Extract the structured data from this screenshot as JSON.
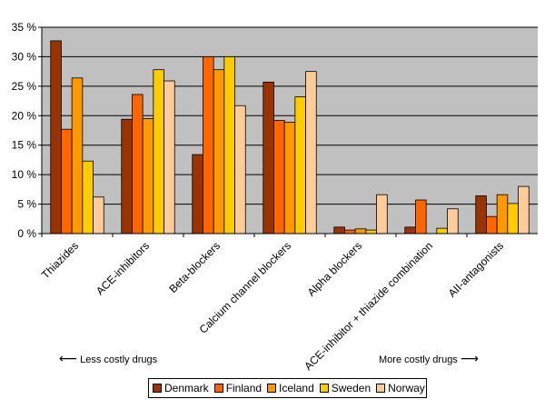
{
  "chart_data": {
    "type": "bar",
    "title": "",
    "xlabel": "",
    "ylabel": "",
    "ylim": [
      0,
      35
    ],
    "yticks": [
      "0 %",
      "5 %",
      "10 %",
      "15 %",
      "20 %",
      "25 %",
      "30 %",
      "35 %"
    ],
    "ytick_values": [
      0,
      5,
      10,
      15,
      20,
      25,
      30,
      35
    ],
    "grid": true,
    "legend_position": "bottom",
    "categories": [
      "Thiazides",
      "ACE-inhibitors",
      "Beta-blockers",
      "Calcium channel blockers",
      "Alpha blockers",
      "ACE-inhibitor + thiazide combination",
      "AII-antagonists"
    ],
    "series": [
      {
        "name": "Denmark",
        "color": "#993300",
        "values": [
          32.7,
          19.4,
          13.4,
          25.7,
          1.1,
          1.1,
          6.4
        ]
      },
      {
        "name": "Finland",
        "color": "#FF6600",
        "values": [
          17.7,
          23.6,
          30.0,
          19.2,
          0.6,
          5.7,
          2.9
        ]
      },
      {
        "name": "Iceland",
        "color": "#FF9900",
        "values": [
          26.4,
          19.5,
          27.8,
          18.9,
          0.8,
          0.0,
          6.6
        ]
      },
      {
        "name": "Sweden",
        "color": "#FFCC00",
        "values": [
          12.3,
          27.8,
          30.0,
          23.2,
          0.6,
          0.9,
          5.1
        ]
      },
      {
        "name": "Norway",
        "color": "#FFCC99",
        "values": [
          6.2,
          25.9,
          21.7,
          27.5,
          6.6,
          4.2,
          8.0
        ]
      }
    ]
  },
  "colors": {
    "plot_background": "#C0C0C0",
    "gridline": "#000000"
  },
  "notes": {
    "left_arrow": "⟵",
    "left_text": "Less costly drugs",
    "right_text": "More costly drugs",
    "right_arrow": "⟶"
  }
}
